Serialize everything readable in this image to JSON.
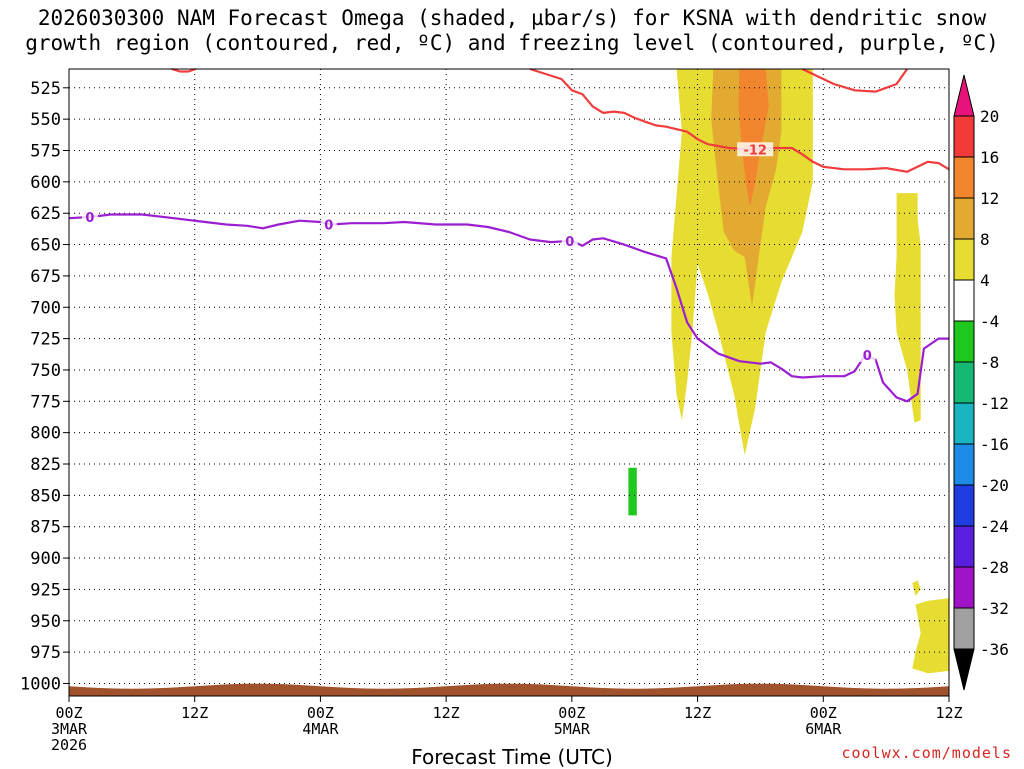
{
  "chart_data": {
    "type": "area",
    "title_lines": [
      "2026030300 NAM Forecast Omega (shaded, µbar/s) for KSNA with dendritic snow",
      "growth region (contoured, red, ºC) and freezing level (contoured, purple, ºC)"
    ],
    "xlabel": "Forecast Time (UTC)",
    "xlim_hours": [
      0,
      84
    ],
    "ylim_hpa": [
      1010,
      510
    ],
    "y_ticks": [
      525,
      550,
      575,
      600,
      625,
      650,
      675,
      700,
      725,
      750,
      775,
      800,
      825,
      850,
      875,
      900,
      925,
      950,
      975,
      1000
    ],
    "x_ticks": [
      {
        "hour": 0,
        "lines": [
          "00Z",
          "3MAR",
          "2026"
        ]
      },
      {
        "hour": 12,
        "lines": [
          "12Z"
        ]
      },
      {
        "hour": 24,
        "lines": [
          "00Z",
          "4MAR"
        ]
      },
      {
        "hour": 36,
        "lines": [
          "12Z"
        ]
      },
      {
        "hour": 48,
        "lines": [
          "00Z",
          "5MAR"
        ]
      },
      {
        "hour": 60,
        "lines": [
          "12Z"
        ]
      },
      {
        "hour": 72,
        "lines": [
          "00Z",
          "6MAR"
        ]
      },
      {
        "hour": 84,
        "lines": [
          "12Z"
        ]
      }
    ],
    "colorbar": {
      "labels": [
        "20",
        "16",
        "12",
        "8",
        "4",
        "-4",
        "-8",
        "-12",
        "-16",
        "-20",
        "-24",
        "-28",
        "-32",
        "-36"
      ],
      "colors": [
        "#e8137a",
        "#f23a3a",
        "#f2862e",
        "#e2aa31",
        "#e6dc32",
        "#ffffff",
        "#1ec81e",
        "#16b874",
        "#18b4c0",
        "#1e8ce6",
        "#1e3ce0",
        "#5a1ee0",
        "#a014c8",
        "#a0a0a0",
        "#000000"
      ]
    },
    "series": [
      {
        "name": "Freezing level (0 ºC)",
        "color": "#9b1fd0",
        "label": "0",
        "label_hours": [
          2.0,
          24.8,
          47.8,
          76.2
        ],
        "points": [
          [
            0,
            629
          ],
          [
            2,
            628
          ],
          [
            4,
            626
          ],
          [
            7,
            626
          ],
          [
            10,
            629
          ],
          [
            13,
            632
          ],
          [
            15,
            634
          ],
          [
            17,
            635
          ],
          [
            18.5,
            637
          ],
          [
            20,
            634
          ],
          [
            22,
            631
          ],
          [
            24,
            632
          ],
          [
            25,
            634
          ],
          [
            27,
            633
          ],
          [
            30,
            633
          ],
          [
            32,
            632
          ],
          [
            35,
            634
          ],
          [
            38,
            634
          ],
          [
            40,
            636
          ],
          [
            42,
            640
          ],
          [
            44,
            646
          ],
          [
            46,
            648
          ],
          [
            48,
            647
          ],
          [
            49,
            651
          ],
          [
            50,
            646
          ],
          [
            51,
            645
          ],
          [
            53,
            650
          ],
          [
            55,
            656
          ],
          [
            57,
            661
          ],
          [
            58,
            685
          ],
          [
            59,
            712
          ],
          [
            60,
            725
          ],
          [
            62,
            737
          ],
          [
            64,
            743
          ],
          [
            66,
            745
          ],
          [
            67,
            744
          ],
          [
            68,
            749
          ],
          [
            69,
            755
          ],
          [
            70,
            756
          ],
          [
            72,
            755
          ],
          [
            74,
            755
          ],
          [
            75,
            751
          ],
          [
            76,
            738
          ],
          [
            77,
            742
          ],
          [
            77.7,
            760
          ],
          [
            79,
            772
          ],
          [
            80,
            775
          ],
          [
            81,
            769
          ],
          [
            81.6,
            733
          ],
          [
            83,
            725
          ],
          [
            84,
            725
          ]
        ]
      },
      {
        "name": "Dendritic growth (-12 ºC)",
        "color": "#f03c3c",
        "label": "-12",
        "label_hours": [
          65.5
        ],
        "points": [
          [
            44,
            510
          ],
          [
            47,
            518
          ],
          [
            48,
            527
          ],
          [
            49,
            530
          ],
          [
            50,
            540
          ],
          [
            51,
            545
          ],
          [
            52,
            544
          ],
          [
            53,
            545
          ],
          [
            54,
            549
          ],
          [
            55,
            552
          ],
          [
            56,
            555
          ],
          [
            57,
            556
          ],
          [
            58,
            558
          ],
          [
            59,
            560
          ],
          [
            60,
            566
          ],
          [
            61,
            570
          ],
          [
            63,
            573
          ],
          [
            65,
            574
          ],
          [
            67,
            573
          ],
          [
            69,
            573
          ],
          [
            70,
            578
          ],
          [
            71,
            584
          ],
          [
            72,
            588
          ],
          [
            74,
            590
          ],
          [
            76,
            590
          ],
          [
            78,
            589
          ],
          [
            80,
            592
          ],
          [
            82,
            584
          ],
          [
            83,
            585
          ],
          [
            84,
            590
          ]
        ]
      },
      {
        "name": "-12 ºC (upper lobe)",
        "color": "#f03c3c",
        "points": [
          [
            9.8,
            510
          ],
          [
            10.6,
            512
          ],
          [
            11.4,
            512
          ],
          [
            12.1,
            510
          ]
        ]
      },
      {
        "name": "-12 ºC (upper right)",
        "color": "#f03c3c",
        "points": [
          [
            70,
            510
          ],
          [
            72,
            518
          ],
          [
            73,
            522
          ],
          [
            75,
            527
          ],
          [
            77,
            528
          ],
          [
            79,
            522
          ],
          [
            80,
            510
          ]
        ]
      }
    ]
  },
  "omega_regions": [
    {
      "level": 4,
      "color": "#e6dc32",
      "polygon": [
        [
          58,
          510
        ],
        [
          60,
          510
        ],
        [
          61.5,
          510
        ],
        [
          63.5,
          510
        ],
        [
          67,
          510
        ],
        [
          71,
          510
        ],
        [
          71,
          600
        ],
        [
          70,
          640
        ],
        [
          68,
          680
        ],
        [
          66.5,
          720
        ],
        [
          65.5,
          780
        ],
        [
          64.5,
          818
        ],
        [
          63.5,
          770
        ],
        [
          62,
          720
        ],
        [
          61,
          690
        ],
        [
          60,
          665
        ],
        [
          59.5,
          720
        ],
        [
          59,
          760
        ],
        [
          58.5,
          790
        ],
        [
          58,
          770
        ],
        [
          57.5,
          720
        ],
        [
          57.5,
          660
        ],
        [
          58,
          610
        ],
        [
          58.5,
          560
        ]
      ]
    },
    {
      "level": 8,
      "color": "#e2aa31",
      "polygon": [
        [
          61.5,
          510
        ],
        [
          63,
          510
        ],
        [
          67,
          510
        ],
        [
          68,
          510
        ],
        [
          68,
          560
        ],
        [
          67.5,
          590
        ],
        [
          66.5,
          620
        ],
        [
          66,
          650
        ],
        [
          65.2,
          700
        ],
        [
          64.5,
          660
        ],
        [
          63.5,
          655
        ],
        [
          62.5,
          640
        ],
        [
          61.8,
          590
        ],
        [
          61.3,
          550
        ]
      ]
    },
    {
      "level": 12,
      "color": "#f2862e",
      "polygon": [
        [
          64,
          510
        ],
        [
          66.5,
          510
        ],
        [
          66.8,
          540
        ],
        [
          66,
          575
        ],
        [
          65.5,
          600
        ],
        [
          65,
          620
        ],
        [
          64.6,
          600
        ],
        [
          64.2,
          570
        ],
        [
          63.9,
          540
        ]
      ]
    },
    {
      "level": 4,
      "color": "#e6dc32",
      "polygon": [
        [
          79,
          609
        ],
        [
          81,
          609
        ],
        [
          81,
          630
        ],
        [
          81.3,
          650
        ],
        [
          81.3,
          790
        ],
        [
          80.7,
          792
        ],
        [
          80,
          750
        ],
        [
          79,
          720
        ],
        [
          78.8,
          690
        ],
        [
          79,
          660
        ]
      ]
    },
    {
      "level": 4,
      "color": "#e6dc32",
      "polygon": [
        [
          80.8,
          937
        ],
        [
          82,
          934
        ],
        [
          84,
          932
        ],
        [
          84,
          990
        ],
        [
          82,
          992
        ],
        [
          80.5,
          988
        ],
        [
          80.8,
          975
        ],
        [
          81.3,
          960
        ]
      ]
    },
    {
      "level": 4,
      "color": "#e6dc32",
      "polygon": [
        [
          80.5,
          920
        ],
        [
          81,
          918
        ],
        [
          81.3,
          925
        ],
        [
          80.8,
          930
        ]
      ]
    },
    {
      "level": -8,
      "color": "#1ec81e",
      "polygon": [
        [
          53.4,
          828
        ],
        [
          54.2,
          828
        ],
        [
          54.2,
          866
        ],
        [
          53.4,
          866
        ]
      ]
    }
  ],
  "terrain": {
    "color": "#a0522d",
    "base_hpa": 1010
  },
  "credit": "coolwx.com/models"
}
